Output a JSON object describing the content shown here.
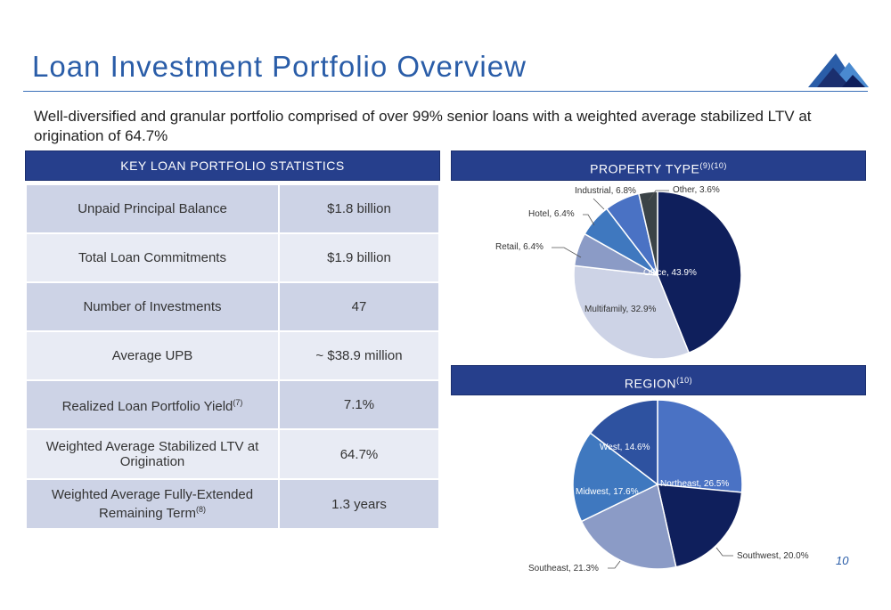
{
  "header": {
    "title": "Loan Investment Portfolio Overview",
    "subtitle": "Well-diversified and granular portfolio comprised of over 99% senior loans with a weighted average stabilized LTV at origination of 64.7%"
  },
  "stats": {
    "title": "KEY LOAN PORTFOLIO STATISTICS",
    "rows": [
      {
        "label": "Unpaid Principal Balance",
        "value": "$1.8 billion"
      },
      {
        "label": "Total Loan Commitments",
        "value": "$1.9 billion"
      },
      {
        "label": "Number of Investments",
        "value": "47"
      },
      {
        "label": "Average UPB",
        "value": "~ $38.9 million"
      },
      {
        "label": "Realized Loan Portfolio Yield",
        "footnote": "(7)",
        "value": "7.1%"
      },
      {
        "label": "Weighted Average Stabilized LTV at Origination",
        "value": "64.7%"
      },
      {
        "label": "Weighted Average Fully-Extended Remaining Term",
        "footnote": "(8)",
        "value": "1.3 years"
      }
    ]
  },
  "chart_data": [
    {
      "type": "pie",
      "title": "PROPERTY TYPE",
      "title_footnote": "(9)(10)",
      "categories": [
        "Office",
        "Multifamily",
        "Retail",
        "Hotel",
        "Industrial",
        "Other"
      ],
      "values": [
        43.9,
        32.9,
        6.4,
        6.4,
        6.8,
        3.6
      ],
      "labels": [
        "Office, 43.9%",
        "Multifamily, 32.9%",
        "Retail, 6.4%",
        "Hotel, 6.4%",
        "Industrial, 6.8%",
        "Other, 3.6%"
      ],
      "colors": [
        "#0F1F5C",
        "#CDD3E6",
        "#8B9BC6",
        "#3F78BF",
        "#4A72C4",
        "#3B4347"
      ],
      "start": "12 o'clock, clockwise"
    },
    {
      "type": "pie",
      "title": "REGION",
      "title_footnote": "(10)",
      "categories": [
        "Northeast",
        "Southwest",
        "Southeast",
        "Midwest",
        "West"
      ],
      "values": [
        26.5,
        20.0,
        21.3,
        17.6,
        14.6
      ],
      "labels": [
        "Northeast, 26.5%",
        "Southwest, 20.0%",
        "Southeast, 21.3%",
        "Midwest, 17.6%",
        "West, 14.6%"
      ],
      "colors": [
        "#4A72C4",
        "#0F1F5C",
        "#8B9BC6",
        "#3F78BF",
        "#2E52A0"
      ],
      "start": "12 o'clock, clockwise"
    }
  ],
  "page": {
    "number": "10"
  }
}
